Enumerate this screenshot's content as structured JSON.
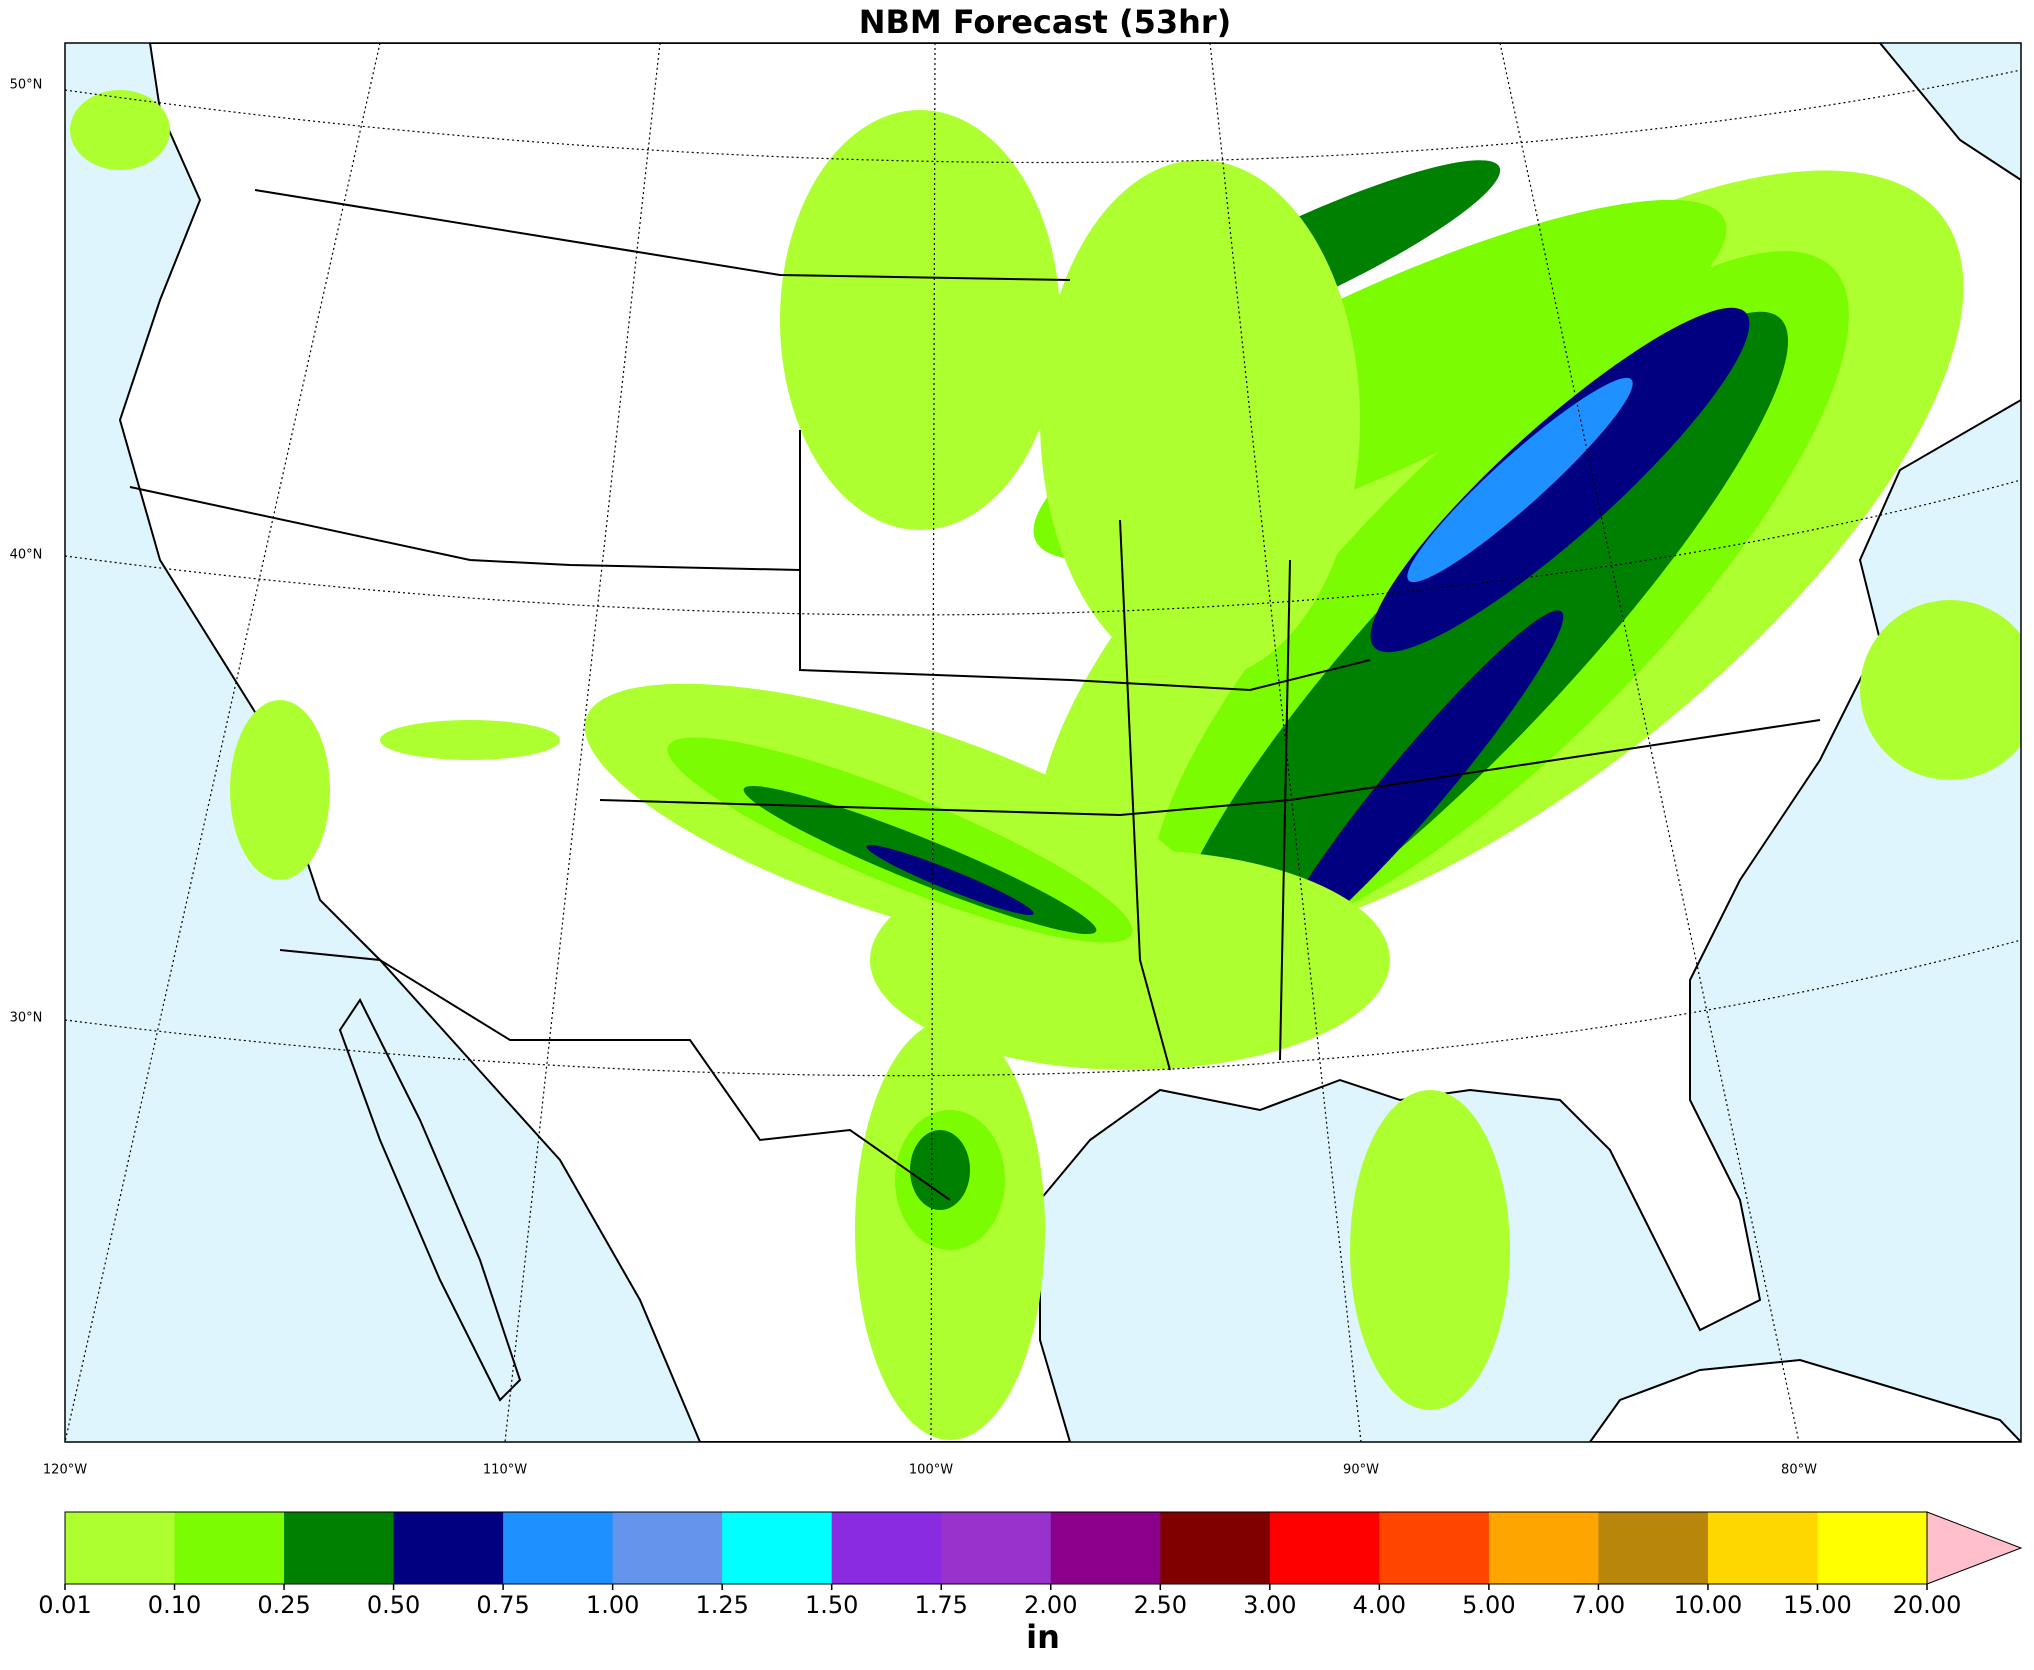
{
  "title": "NBM Forecast (53hr)",
  "map": {
    "lat_labels": [
      "50°N",
      "40°N",
      "30°N"
    ],
    "lon_labels": [
      "120°W",
      "110°W",
      "100°W",
      "90°W",
      "80°W"
    ]
  },
  "colorbar": {
    "ticks": [
      0.01,
      {
        "value": 0.1,
        "label": "0.10"
      },
      0.25,
      {
        "value": 0.5,
        "label": "0.50"
      },
      0.75,
      {
        "value": 1,
        "label": "1.00"
      },
      1.25,
      {
        "value": 1.5,
        "label": "1.50"
      },
      1.75,
      {
        "value": 2,
        "label": "2.00"
      },
      {
        "value": 2.5,
        "label": "2.50"
      },
      {
        "value": 3,
        "label": "3.00"
      },
      {
        "value": 4,
        "label": "4.00"
      },
      {
        "value": 5,
        "label": "5.00"
      },
      {
        "value": 7,
        "label": "7.00"
      },
      {
        "value": 10,
        "label": "10.00"
      },
      {
        "value": 15,
        "label": "15.00"
      },
      {
        "value": 20,
        "label": "20.00"
      }
    ],
    "colors": [
      "#adff2f",
      "#7cfc00",
      "#008000",
      "#000080",
      "#1e90ff",
      "#6495ed",
      "#00ffff",
      "#8a2be2",
      "#9932cc",
      "#8b008b",
      "#800000",
      "#ff0000",
      "#ff4500",
      "#ffa500",
      "#b8860b",
      "#ffd700",
      "#ffff00"
    ],
    "extend_color": "#ffc0cb",
    "label": "in"
  }
}
